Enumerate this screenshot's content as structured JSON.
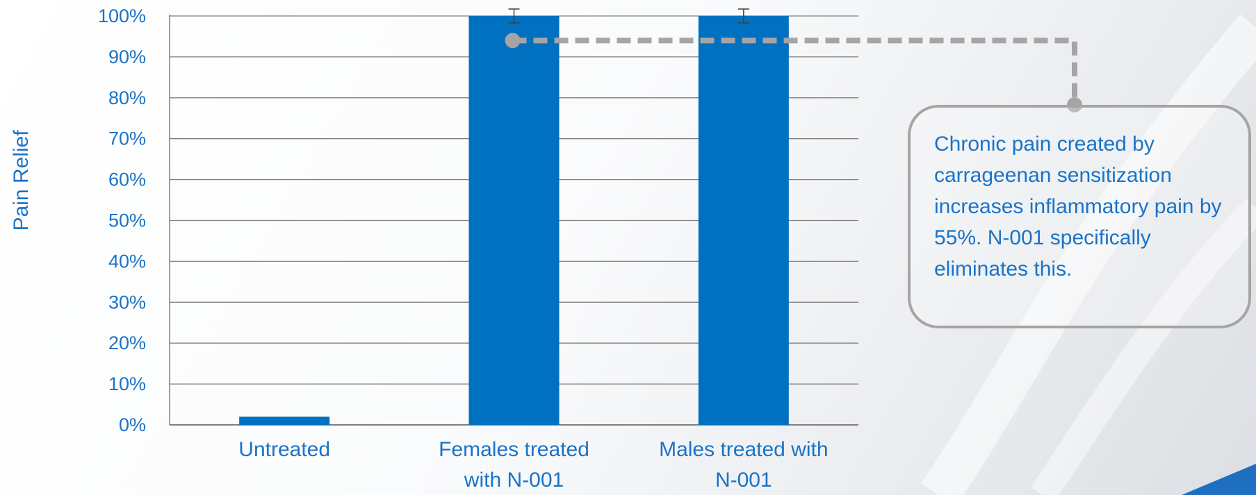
{
  "chart_data": {
    "type": "bar",
    "categories": [
      "Untreated",
      "Females treated with N-001",
      "Males treated with N-001"
    ],
    "category_lines": [
      [
        "Untreated"
      ],
      [
        "Females treated",
        "with N-001"
      ],
      [
        "Males treated with",
        "N-001"
      ]
    ],
    "series": [
      {
        "values": [
          2,
          100,
          100
        ]
      }
    ],
    "error_bars": [
      null,
      1.7,
      1.7
    ],
    "ylabel": "Pain Relief",
    "ylim": [
      0,
      100
    ],
    "yticks": [
      0,
      10,
      20,
      30,
      40,
      50,
      60,
      70,
      80,
      90,
      100
    ],
    "ytick_labels": [
      "0%",
      "10%",
      "20%",
      "30%",
      "40%",
      "50%",
      "60%",
      "70%",
      "80%",
      "90%",
      "100%"
    ],
    "grid": true,
    "bar_color": "#0070c0"
  },
  "callout": {
    "text": "Chronic pain created by carrageenan sensitization increases inflammatory pain by 55%. N-001 specifically eliminates this.",
    "anchor_y_value": 94,
    "border_color": "#a5a5a5"
  },
  "colors": {
    "text": "#1a73c8",
    "grid": "#7f7f7f",
    "connector": "#a5a5a5"
  }
}
